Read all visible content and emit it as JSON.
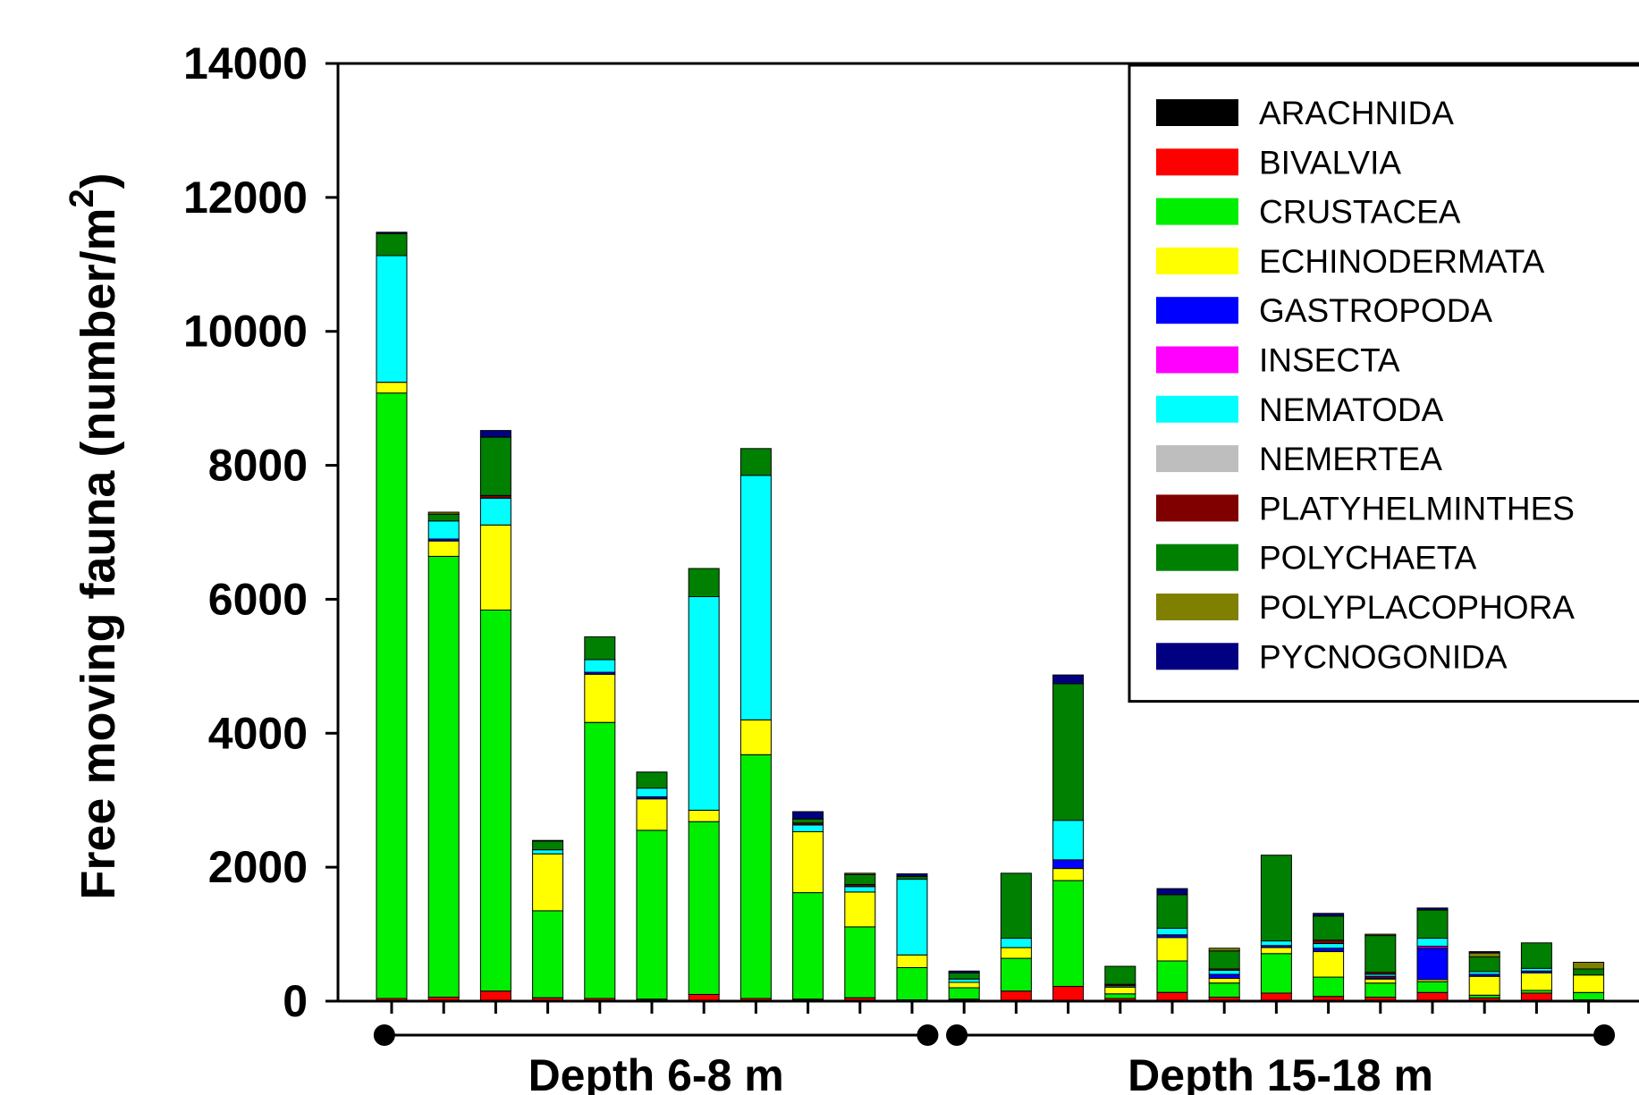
{
  "chart_data": {
    "type": "bar",
    "stacked": true,
    "title": "",
    "ylabel": "Free moving fauna (number/m",
    "ylabel_superscript": "2",
    "ylabel_close": ")",
    "ylim": [
      0,
      14000
    ],
    "yticks": [
      0,
      2000,
      4000,
      6000,
      8000,
      10000,
      12000,
      14000
    ],
    "grid": false,
    "legend_position": "top-right",
    "groups": [
      {
        "label": "Depth 6-8 m",
        "from": 0,
        "to": 10
      },
      {
        "label": "Depth 15-18 m",
        "from": 11,
        "to": 23
      }
    ],
    "x": [
      1,
      2,
      3,
      4,
      5,
      6,
      7,
      8,
      9,
      10,
      11,
      12,
      13,
      14,
      15,
      16,
      17,
      18,
      19,
      20,
      21,
      22,
      23,
      24
    ],
    "series": [
      {
        "name": "ARACHNIDA",
        "color": "#000000",
        "values": [
          0,
          0,
          0,
          0,
          0,
          0,
          0,
          0,
          0,
          0,
          0,
          0,
          0,
          0,
          0,
          0,
          0,
          0,
          0,
          0,
          0,
          0,
          0,
          0
        ]
      },
      {
        "name": "BIVALVIA",
        "color": "#ff0000",
        "values": [
          40,
          60,
          150,
          50,
          40,
          30,
          100,
          40,
          30,
          50,
          20,
          30,
          150,
          220,
          40,
          130,
          60,
          120,
          70,
          60,
          130,
          50,
          120,
          20
        ]
      },
      {
        "name": "CRUSTACEA",
        "color": "#00ee00",
        "values": [
          9040,
          6580,
          5690,
          1300,
          4120,
          2520,
          2580,
          3640,
          1590,
          1060,
          480,
          170,
          490,
          1580,
          70,
          470,
          210,
          590,
          290,
          210,
          160,
          40,
          40,
          110
        ]
      },
      {
        "name": "ECHINODERMATA",
        "color": "#ffff00",
        "values": [
          160,
          230,
          1270,
          850,
          720,
          470,
          170,
          520,
          910,
          520,
          190,
          80,
          160,
          180,
          100,
          350,
          70,
          90,
          380,
          60,
          30,
          280,
          260,
          260
        ]
      },
      {
        "name": "GASTROPODA",
        "color": "#0000ff",
        "values": [
          0,
          30,
          0,
          0,
          30,
          30,
          0,
          0,
          0,
          0,
          0,
          0,
          0,
          130,
          0,
          40,
          60,
          30,
          50,
          20,
          470,
          30,
          30,
          0
        ]
      },
      {
        "name": "INSECTA",
        "color": "#ff00ff",
        "values": [
          0,
          0,
          0,
          0,
          0,
          0,
          0,
          0,
          0,
          0,
          0,
          0,
          0,
          0,
          0,
          0,
          0,
          0,
          0,
          20,
          30,
          0,
          0,
          0
        ]
      },
      {
        "name": "NEMATODA",
        "color": "#00ffff",
        "values": [
          1890,
          270,
          400,
          60,
          190,
          130,
          3190,
          3650,
          100,
          80,
          1130,
          50,
          140,
          590,
          20,
          100,
          60,
          70,
          70,
          30,
          120,
          40,
          40,
          0
        ]
      },
      {
        "name": "NEMERTEA",
        "color": "#bebebe",
        "values": [
          0,
          0,
          0,
          0,
          0,
          0,
          0,
          0,
          0,
          0,
          0,
          0,
          0,
          0,
          0,
          0,
          0,
          0,
          0,
          0,
          0,
          0,
          0,
          0
        ]
      },
      {
        "name": "PLATYHELMINTHES",
        "color": "#800000",
        "values": [
          0,
          0,
          40,
          0,
          0,
          0,
          0,
          0,
          30,
          30,
          0,
          0,
          0,
          0,
          20,
          0,
          20,
          0,
          50,
          30,
          0,
          0,
          0,
          0
        ]
      },
      {
        "name": "POLYCHAETA",
        "color": "#008000",
        "values": [
          330,
          100,
          870,
          130,
          340,
          240,
          420,
          400,
          60,
          150,
          40,
          90,
          970,
          2040,
          270,
          500,
          270,
          1280,
          360,
          550,
          420,
          220,
          380,
          90
        ]
      },
      {
        "name": "POLYPLACOPHORA",
        "color": "#808000",
        "values": [
          0,
          30,
          0,
          10,
          0,
          0,
          0,
          0,
          0,
          20,
          0,
          0,
          0,
          0,
          0,
          0,
          40,
          0,
          0,
          20,
          0,
          60,
          0,
          100
        ]
      },
      {
        "name": "PYCNOGONIDA",
        "color": "#000080",
        "values": [
          20,
          0,
          100,
          0,
          0,
          0,
          0,
          0,
          110,
          0,
          40,
          30,
          0,
          130,
          0,
          90,
          0,
          0,
          40,
          0,
          30,
          20,
          0,
          0
        ]
      }
    ]
  }
}
